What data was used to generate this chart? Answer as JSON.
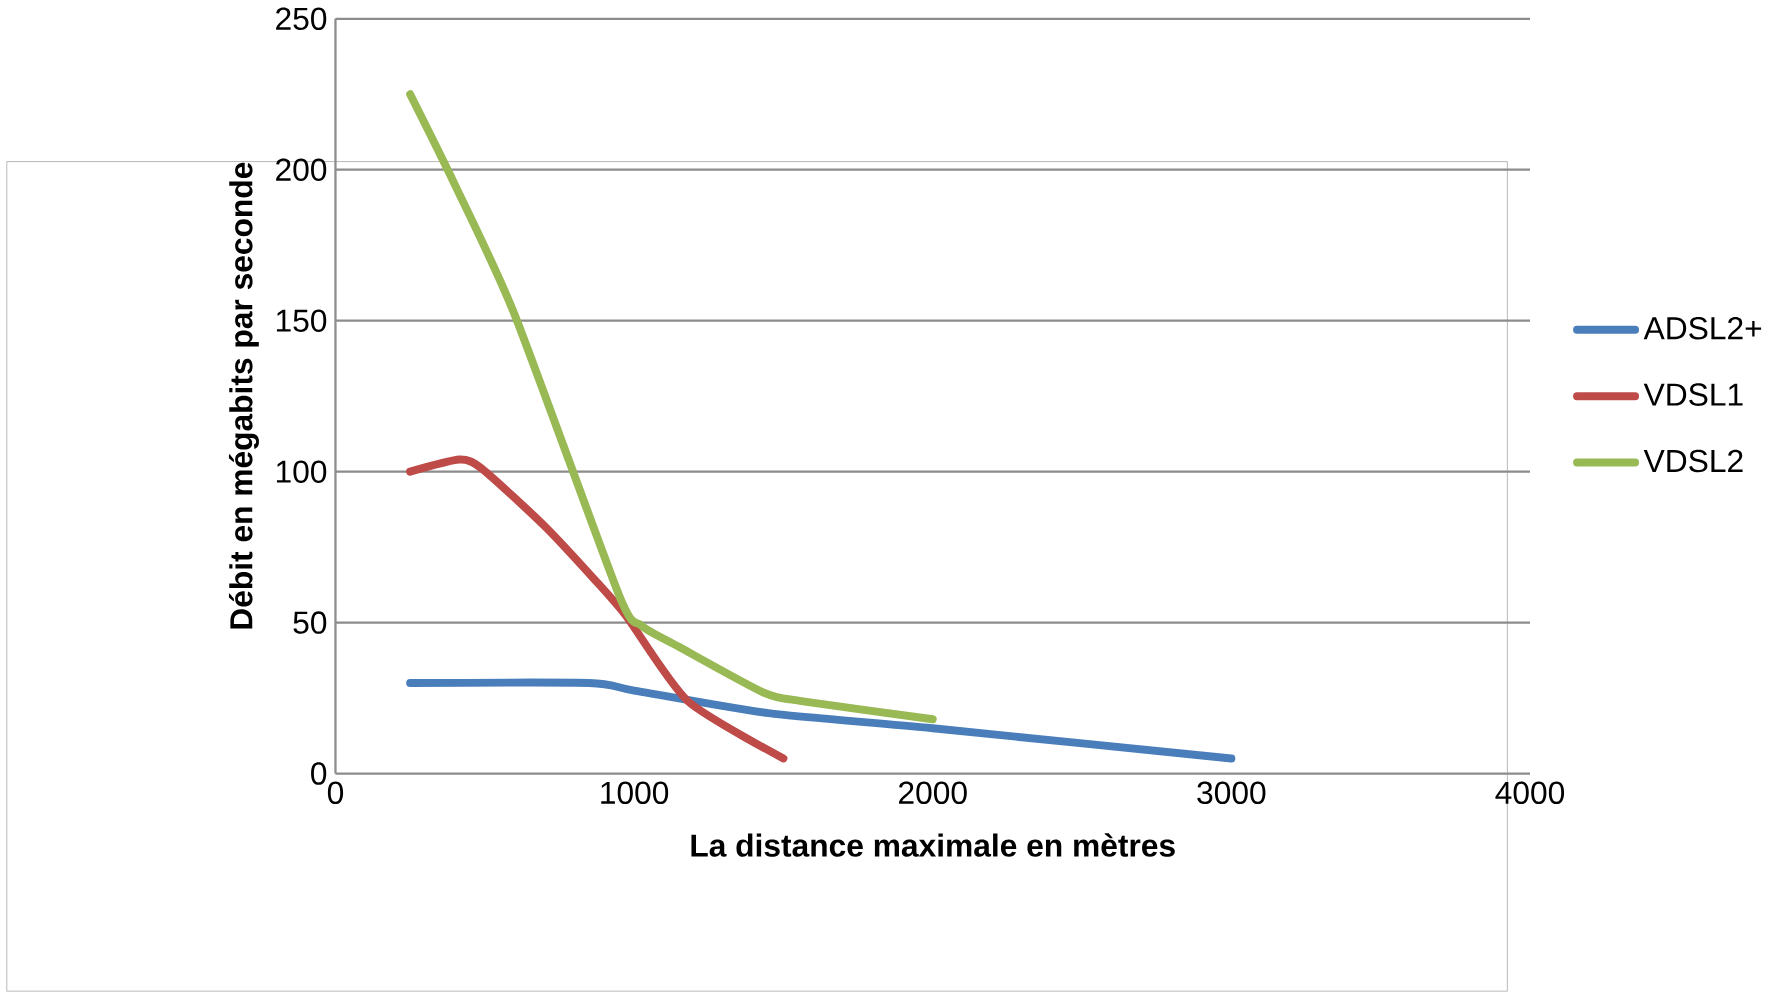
{
  "chart_data": {
    "type": "line",
    "xlabel": "La distance maximale en mètres",
    "ylabel": "Débit en mégabits par seconde",
    "xlim": [
      0,
      4000
    ],
    "xticks": [
      0,
      1000,
      2000,
      3000,
      4000
    ],
    "ylim": [
      0,
      250
    ],
    "yticks": [
      0,
      50,
      100,
      150,
      200,
      250
    ],
    "grid": "y",
    "legend": "right",
    "marker": "none",
    "line_style": "solid",
    "series": [
      {
        "name": "ADSL2+",
        "color": "#4a7ebb",
        "x": [
          250,
          850,
          1000,
          1450,
          2000,
          3000
        ],
        "values": [
          30,
          30,
          27.5,
          20,
          15,
          5
        ]
      },
      {
        "name": "VDSL1",
        "color": "#be4b48",
        "x": [
          250,
          415,
          490,
          700,
          870,
          975,
          1180,
          1500
        ],
        "values": [
          100,
          104,
          101,
          82,
          64,
          52,
          24,
          5
        ]
      },
      {
        "name": "VDSL2",
        "color": "#98b954",
        "x": [
          250,
          400,
          600,
          950,
          1025,
          1150,
          1430,
          1560,
          2000
        ],
        "values": [
          225,
          195,
          152,
          59,
          49,
          42,
          27,
          24,
          18
        ]
      }
    ]
  }
}
